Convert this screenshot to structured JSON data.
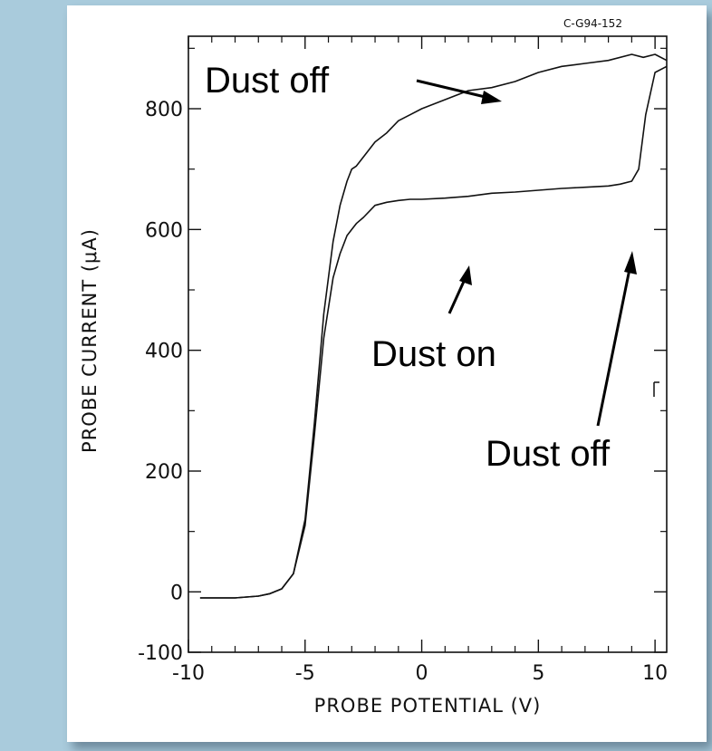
{
  "chart_data": {
    "type": "line",
    "figure_id": "C-G94-152",
    "xlabel": "PROBE POTENTIAL (V)",
    "ylabel": "PROBE CURRENT (μA)",
    "xlim": [
      -10,
      10.5
    ],
    "ylim": [
      -100,
      920
    ],
    "x_ticks": [
      -10,
      -5,
      0,
      5,
      10
    ],
    "x_tick_labels": [
      "-10",
      "-5",
      "0",
      "5",
      "10"
    ],
    "y_ticks": [
      -100,
      0,
      200,
      400,
      600,
      800
    ],
    "y_tick_labels": [
      "-100",
      "0",
      "200",
      "400",
      "600",
      "800"
    ],
    "series": [
      {
        "x": [
          -9.5,
          -8,
          -7,
          -6.5,
          -6,
          -5.5,
          -5,
          -4.6,
          -4.2,
          -3.8,
          -3.5,
          -3.2,
          -3,
          -2.8,
          -2.5,
          -2,
          -1.5,
          -1,
          -0.5,
          0,
          1,
          2,
          3,
          4,
          5,
          6,
          7,
          8,
          9,
          9.5,
          10,
          10.5
        ],
        "y": [
          -10,
          -10,
          -7,
          -3,
          5,
          30,
          120,
          280,
          460,
          580,
          640,
          680,
          700,
          705,
          720,
          745,
          760,
          780,
          790,
          800,
          815,
          830,
          835,
          845,
          860,
          870,
          875,
          880,
          890,
          885,
          890,
          880
        ]
      },
      {
        "x": [
          -9.5,
          -8,
          -7,
          -6.5,
          -6,
          -5.5,
          -5,
          -4.6,
          -4.2,
          -3.8,
          -3.5,
          -3.2,
          -3,
          -2.8,
          -2.5,
          -2,
          -1.5,
          -1,
          -0.5,
          0,
          1,
          2,
          3,
          4,
          5,
          6,
          7,
          8,
          8.5,
          9,
          9.3,
          9.6,
          10,
          10.5
        ],
        "y": [
          -10,
          -10,
          -7,
          -3,
          5,
          30,
          110,
          260,
          420,
          520,
          560,
          590,
          600,
          610,
          620,
          640,
          645,
          648,
          650,
          650,
          652,
          655,
          660,
          662,
          665,
          668,
          670,
          672,
          675,
          680,
          700,
          790,
          860,
          870
        ]
      }
    ],
    "annotations": [
      "Dust off",
      "Dust on",
      "Dust off"
    ]
  }
}
